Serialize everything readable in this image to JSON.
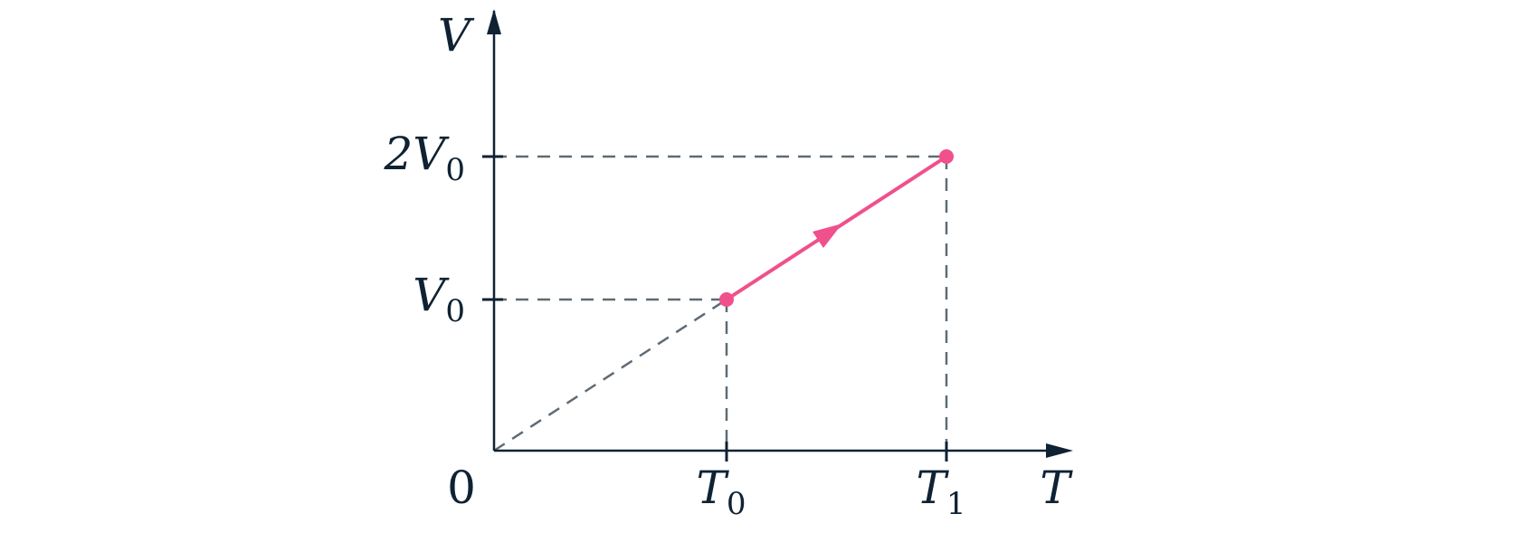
{
  "axes": {
    "y_label": "V",
    "x_label": "T",
    "origin_label": "0"
  },
  "x_ticks": [
    {
      "main": "T",
      "sub": "0"
    },
    {
      "main": "T",
      "sub": "1"
    }
  ],
  "y_ticks": [
    {
      "main": "V",
      "sub": "0"
    },
    {
      "main": "2V",
      "sub": "0"
    }
  ]
}
